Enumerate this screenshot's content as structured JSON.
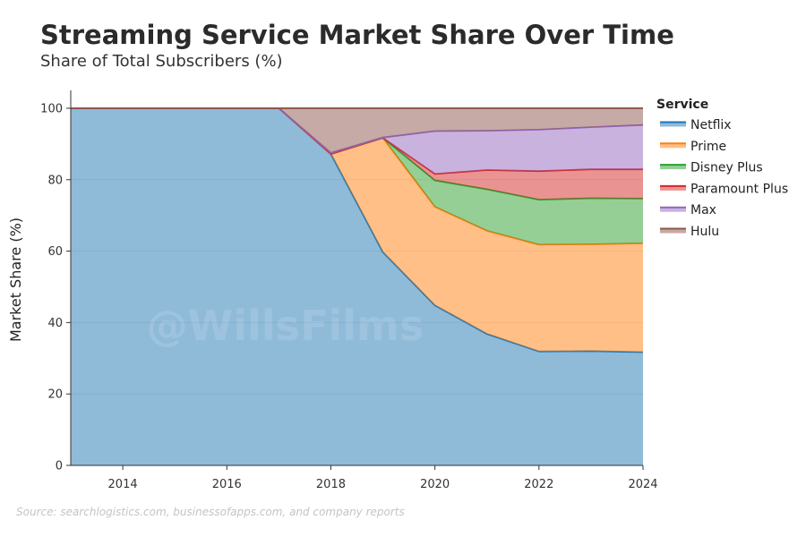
{
  "header": {
    "title": "Streaming Service Market Share Over Time",
    "subtitle": "Share of Total Subscribers (%)"
  },
  "footer": {
    "source": "Source: searchlogistics.com, businessofapps.com, and company reports"
  },
  "watermark": "@WillsFilms",
  "chart_data": {
    "type": "area",
    "stacked": true,
    "x": [
      2013,
      2014,
      2015,
      2016,
      2017,
      2018,
      2019,
      2020,
      2021,
      2022,
      2023,
      2024
    ],
    "x_ticks": [
      2014,
      2016,
      2018,
      2020,
      2022,
      2024
    ],
    "xlim": [
      2013,
      2024
    ],
    "ylim": [
      0,
      105
    ],
    "y_ticks": [
      0,
      20,
      40,
      60,
      80,
      100
    ],
    "xlabel": "",
    "ylabel": "Market Share (%)",
    "grid": "horizontal",
    "legend": {
      "title": "Service",
      "position": "right"
    },
    "series": [
      {
        "name": "Netflix",
        "color": "#1f77b4",
        "values": [
          100,
          100,
          100,
          100,
          100,
          87.2,
          59.7,
          44.8,
          36.8,
          31.9,
          32,
          31.7
        ]
      },
      {
        "name": "Prime",
        "color": "#ff7f0e",
        "values": [
          0,
          0,
          0,
          0,
          0,
          0,
          32,
          27.6,
          28.9,
          29.9,
          29.9,
          30.5
        ]
      },
      {
        "name": "Disney Plus",
        "color": "#2ca02c",
        "values": [
          0,
          0,
          0,
          0,
          0,
          0,
          0,
          7.4,
          11.6,
          12.6,
          12.9,
          12.5
        ]
      },
      {
        "name": "Paramount Plus",
        "color": "#d62728",
        "values": [
          0,
          0,
          0,
          0,
          0,
          0,
          0,
          1.8,
          5.4,
          8,
          8.1,
          8.2
        ]
      },
      {
        "name": "Max",
        "color": "#9467bd",
        "values": [
          0,
          0,
          0,
          0,
          0,
          0.3,
          0.1,
          12,
          11,
          11.6,
          11.8,
          12.4
        ]
      },
      {
        "name": "Hulu",
        "color": "#8c564b",
        "values": [
          0,
          0,
          0,
          0,
          0,
          12.5,
          8.2,
          6.4,
          6.3,
          6,
          5.3,
          4.7
        ]
      }
    ]
  }
}
